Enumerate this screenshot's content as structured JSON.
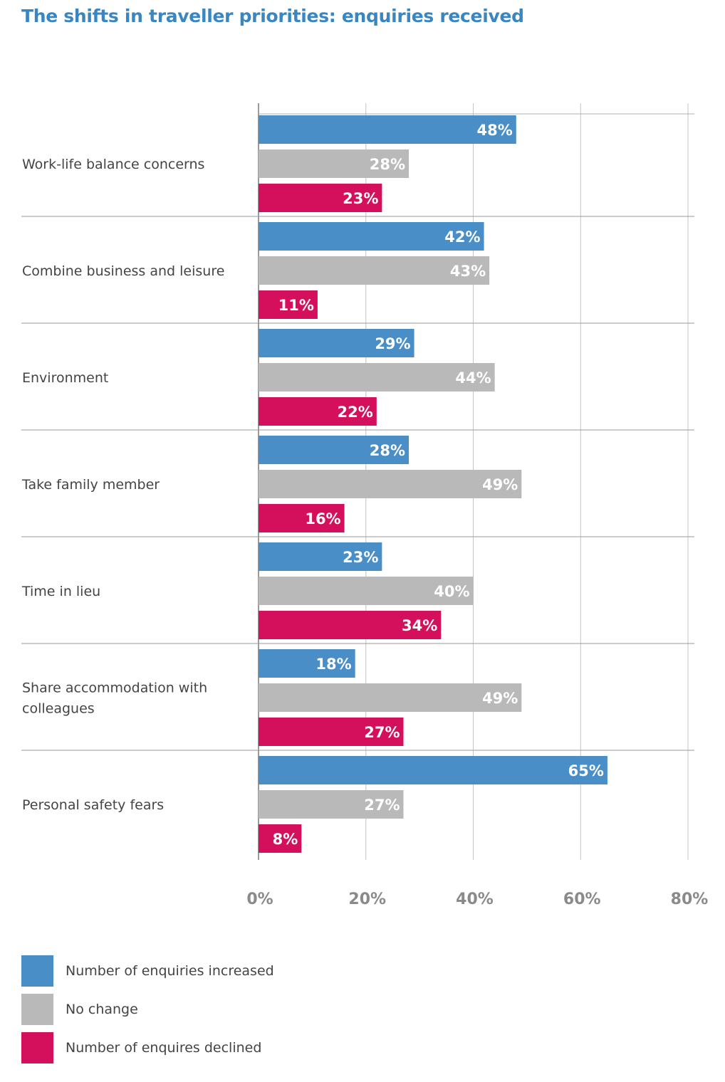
{
  "chart_data": {
    "type": "bar",
    "orientation": "horizontal",
    "title": "The shifts in traveller priorities: enquiries received",
    "categories": [
      "Work-life balance concerns",
      "Combine business and leisure",
      "Environment",
      "Take family member",
      "Time in lieu",
      "Share accommodation with colleagues",
      "Personal safety fears"
    ],
    "series": [
      {
        "name": "Number of enquiries increased",
        "color": "#4a8ec7",
        "values": [
          48,
          42,
          29,
          28,
          23,
          18,
          65
        ]
      },
      {
        "name": "No change",
        "color": "#b9b9b9",
        "values": [
          28,
          43,
          44,
          49,
          40,
          49,
          27
        ]
      },
      {
        "name": "Number of enquires declined",
        "color": "#d4105c",
        "values": [
          23,
          11,
          22,
          16,
          34,
          27,
          8
        ]
      }
    ],
    "value_suffix": "%",
    "xlim": [
      0,
      80
    ],
    "xticks": [
      "0%",
      "20%",
      "40%",
      "60%",
      "80%"
    ],
    "grid": true,
    "legend_position": "bottom-left"
  }
}
